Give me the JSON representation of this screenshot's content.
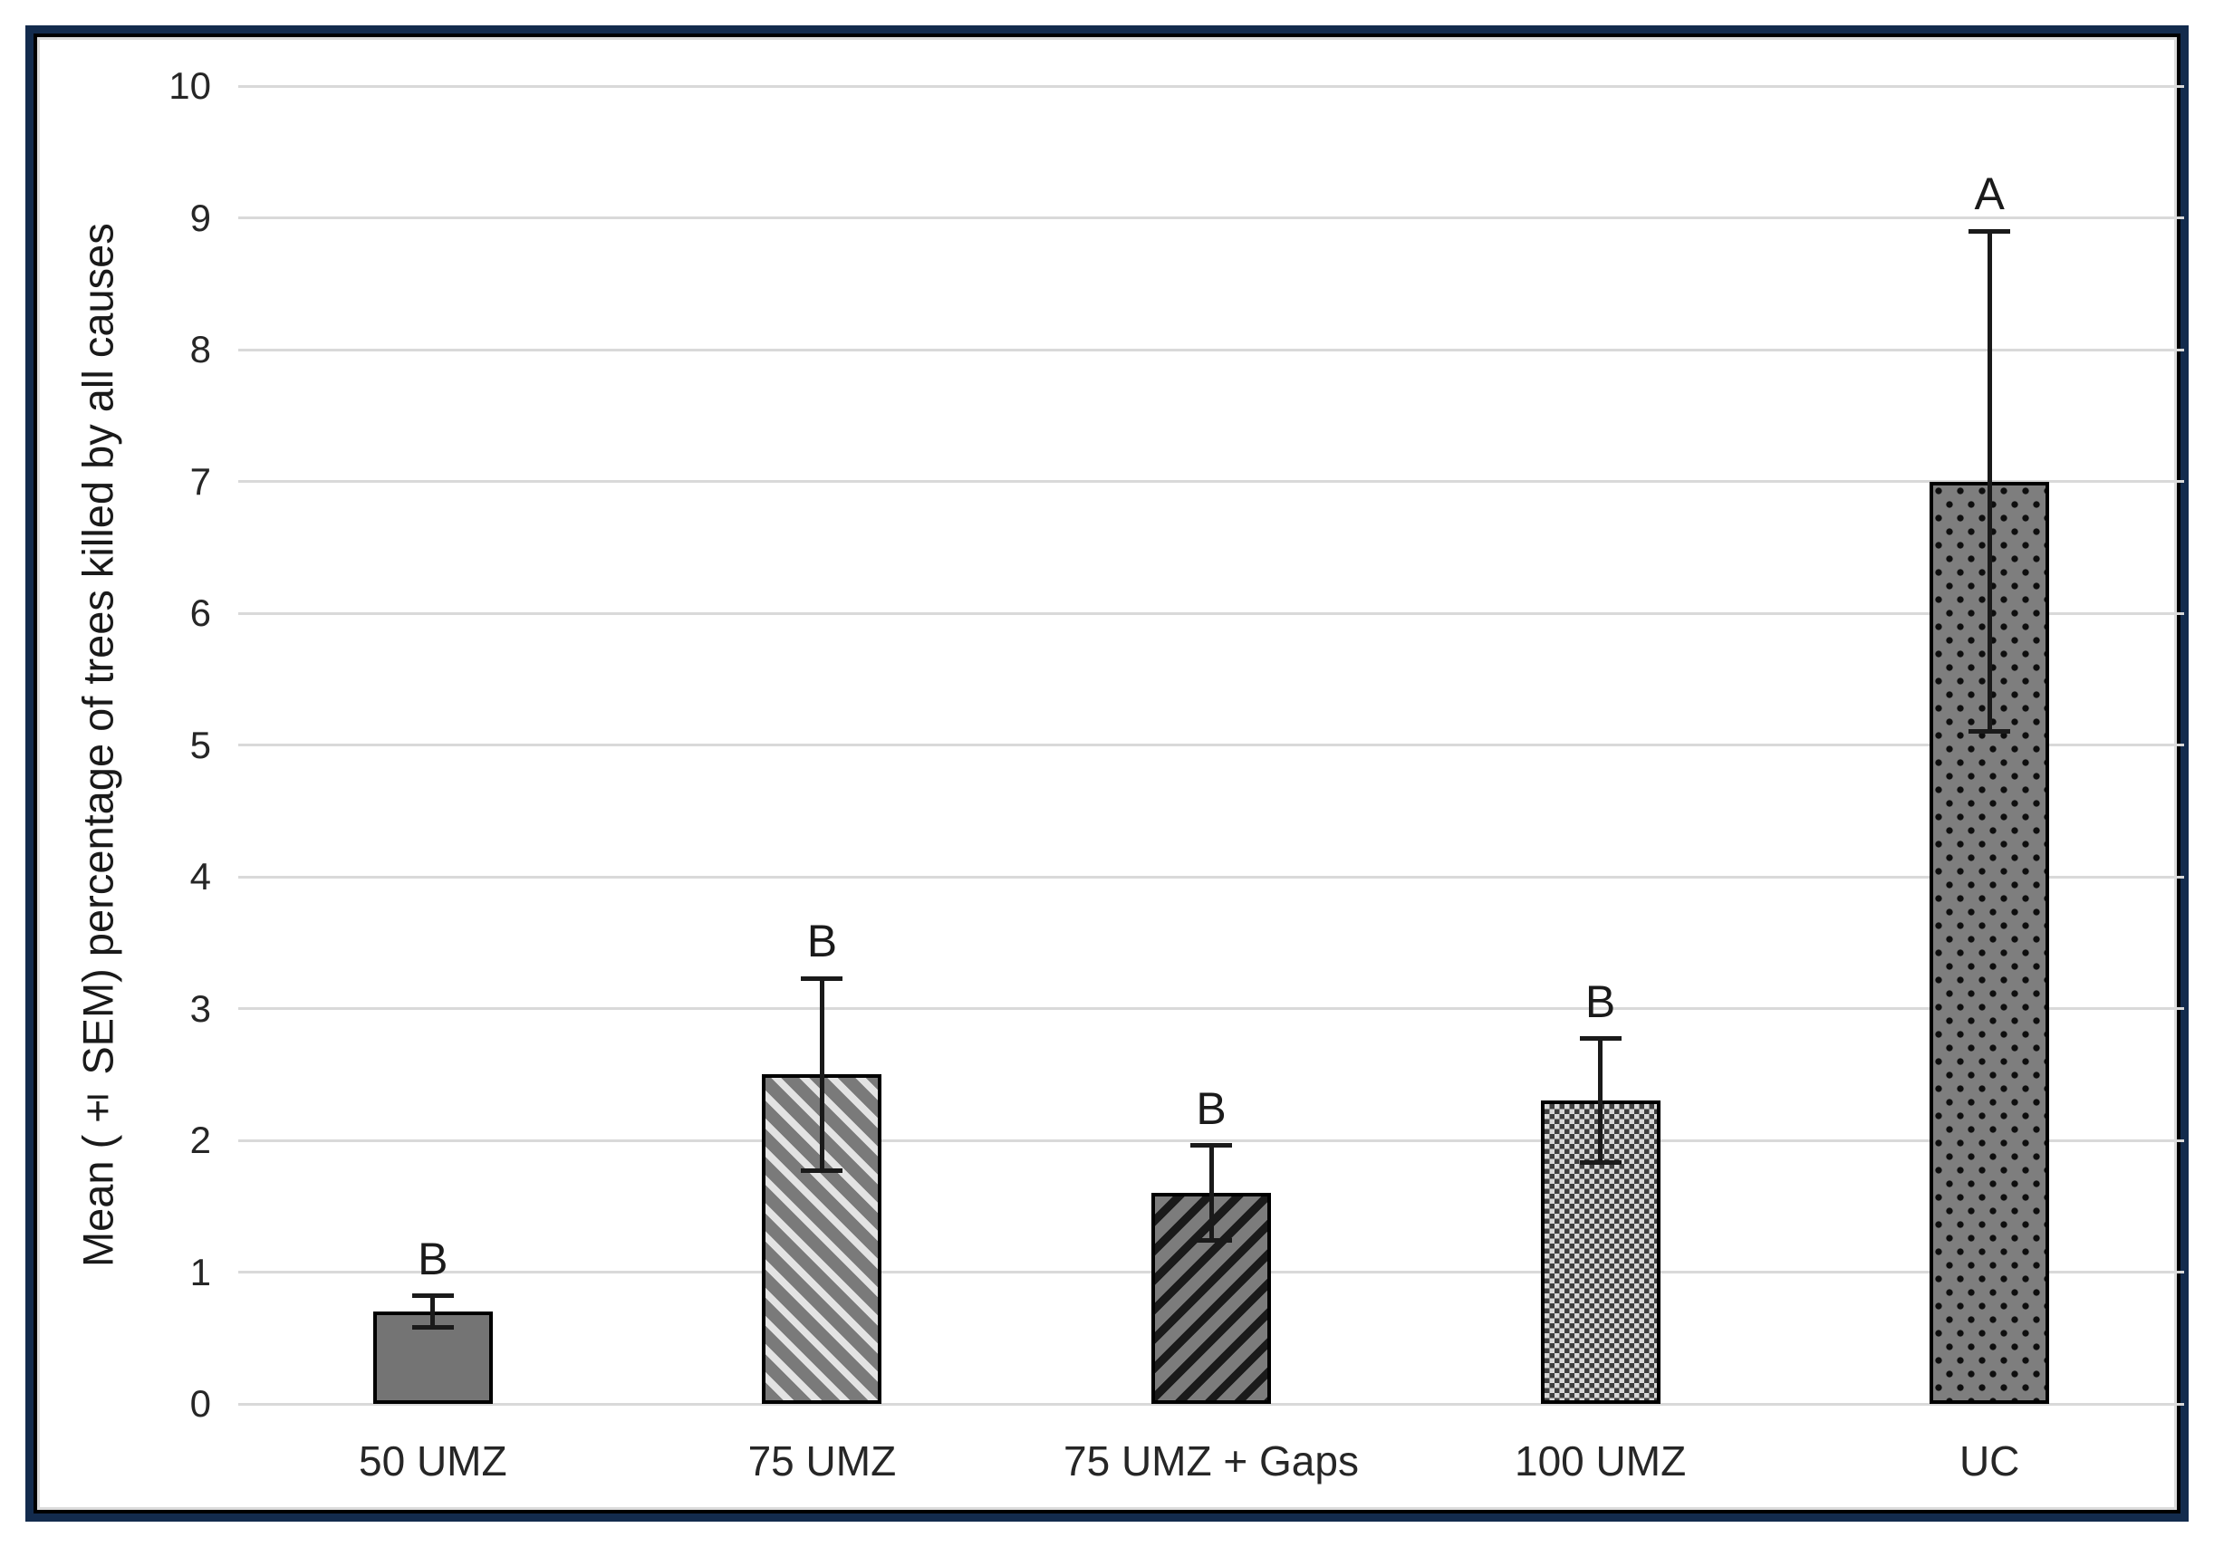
{
  "figure": {
    "frame_border_color": "#132b4d",
    "inner_border_color": "#000000",
    "background": "#ffffff"
  },
  "chart_data": {
    "type": "bar",
    "title": "",
    "ylabel": "Mean (± SEM) percentage of trees killed by all causes",
    "xlabel": "",
    "ylim": [
      0,
      10
    ],
    "yticks": [
      0,
      1,
      2,
      3,
      4,
      5,
      6,
      7,
      8,
      9,
      10
    ],
    "grid": "horizontal light-gray gridlines at every integer",
    "legend": "none",
    "categories": [
      "50 UMZ",
      "75 UMZ",
      "75 UMZ + Gaps",
      "100 UMZ",
      "UC"
    ],
    "series": [
      {
        "name": "Mean percentage of trees killed by all causes",
        "values": [
          0.7,
          2.5,
          1.6,
          2.3,
          7.0
        ]
      }
    ],
    "error_bars": {
      "kind": "± SEM",
      "sem": [
        0.12,
        0.73,
        0.36,
        0.47,
        1.9
      ]
    },
    "significance_letters": [
      "B",
      "B",
      "B",
      "B",
      "A"
    ],
    "bar_patterns": [
      "solid-gray",
      "light-diagonal-stripes-up",
      "black-diagonal-stripes-down",
      "fine-checkerboard",
      "dotted-gray"
    ],
    "colors": {
      "bar_solid": "#747474",
      "stripe_gray": "#7a7a7a",
      "stripe_light": "#e3e3e3",
      "stripe_black": "#1a1a1a",
      "checker_dark": "#3e3e3e",
      "checker_light": "#d8d8d8",
      "dots_background": "#7e7e7e",
      "dot": "#0e0e0e",
      "gridline": "#d9d9d9",
      "bar_outline": "#000000",
      "text": "#1a1a1a",
      "frame": "#132b4d"
    }
  }
}
